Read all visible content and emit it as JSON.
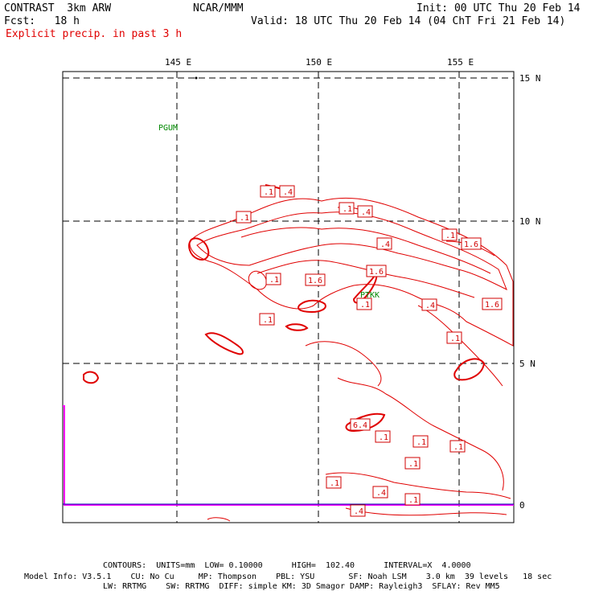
{
  "header": {
    "title": "CONTRAST  3km ARW",
    "org": "NCAR/MMM",
    "init": "Init: 00 UTC Thu 20 Feb 14",
    "fcst": "Fcst:   18 h",
    "valid": "Valid: 18 UTC Thu 20 Feb 14 (04 ChT Fri 21 Feb 14)",
    "field": "Explicit precip. in past 3 h"
  },
  "axes": {
    "lon_labels": [
      "145 E",
      "150 E",
      "155 E"
    ],
    "lat_labels": [
      "15 N",
      "10 N",
      "5 N",
      "0"
    ]
  },
  "stations": [
    "PGUM",
    "PTKK"
  ],
  "contour_labels": [
    ".1",
    ".4",
    ".1",
    ".1",
    ".4",
    ".4",
    ".1",
    "1.6",
    ".1",
    "1.6",
    "1.6",
    ".1",
    ".1",
    ".4",
    "1.6",
    ".1",
    ".1",
    "6.4",
    ".1",
    ".1",
    ".1",
    ".1",
    ".1",
    ".4",
    ".4",
    ".4",
    ".1"
  ],
  "footer": {
    "contours": "CONTOURS:  UNITS=mm  LOW= 0.10000      HIGH=  102.40      INTERVAL=X  4.0000",
    "line1": "Model Info: V3.5.1    CU: No Cu     MP: Thompson    PBL: YSU       SF: Noah LSM    3.0 km  39 levels   18 sec",
    "line2": "LW: RRTMG    SW: RRTMG  DIFF: simple KM: 3D Smagor DAMP: Rayleigh3  SFLAY: Rev MM5"
  },
  "colors": {
    "contour": "#e00000",
    "station": "#008800",
    "inset": "#ff00ff",
    "field_title": "#e00000"
  }
}
